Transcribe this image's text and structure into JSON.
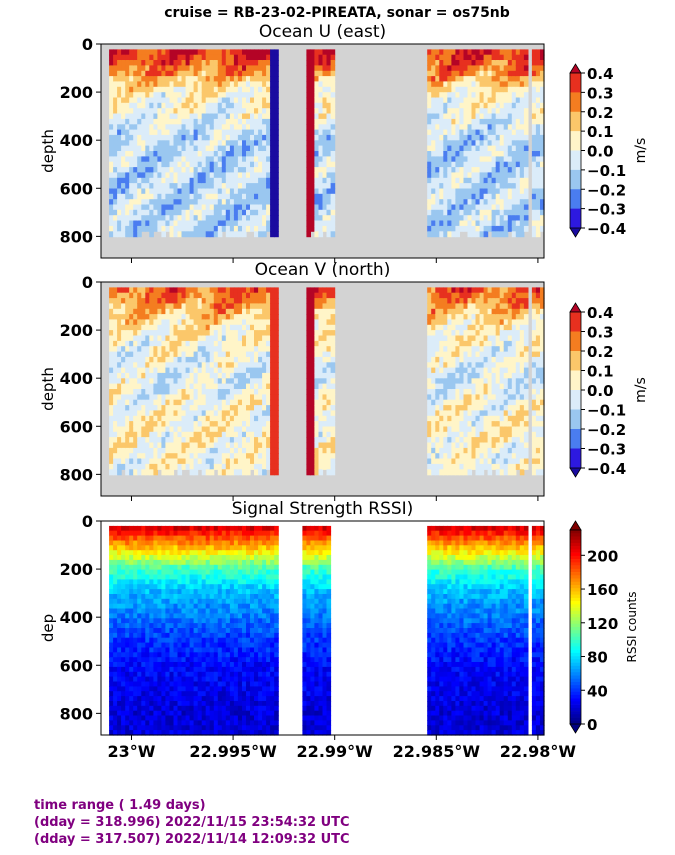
{
  "figure": {
    "suptitle": "cruise = RB-23-02-PIREATA,  sonar = os75nb"
  },
  "footer": {
    "line1": "time range ( 1.49 days)",
    "line2": "(dday = 318.996) 2022/11/15 23:54:32 UTC",
    "line3": "(dday = 317.507) 2022/11/14 12:09:32 UTC"
  },
  "chart_data": [
    {
      "type": "heatmap",
      "title": "Ocean U (east)",
      "ylabel": "depth",
      "ylim": [
        890,
        0
      ],
      "yticks": [
        0,
        200,
        400,
        600,
        800
      ],
      "xticks": [
        "23°W",
        "22.995°W",
        "22.99°W",
        "22.985°W",
        "22.98°W"
      ],
      "xtick_values": [
        -23.0,
        -22.995,
        -22.99,
        -22.985,
        -22.98
      ],
      "xlim": [
        -23.0015,
        -22.9797
      ],
      "colorbar": {
        "label": "m/s",
        "ticks": [
          "0.4",
          "0.3",
          "0.2",
          "0.1",
          "0.0",
          "−0.1",
          "−0.2",
          "−0.3",
          "−0.4"
        ],
        "levels": [
          0.4,
          0.3,
          0.2,
          0.1,
          0.0,
          -0.1,
          -0.2,
          -0.3,
          -0.4
        ],
        "colors": [
          "#b40426",
          "#e7301f",
          "#f47d20",
          "#fbc76a",
          "#fff5c8",
          "#dbecf9",
          "#9ac7f0",
          "#4a7df0",
          "#2d19e0",
          "#1a0ba0"
        ],
        "extend": "both"
      },
      "nodata_color": "#d3d3d3",
      "data_gaps_x": [
        [
          -22.9927,
          -22.9914
        ],
        [
          -22.99,
          -22.9855
        ],
        [
          -22.9805,
          -22.9802
        ]
      ],
      "max_depth_m": 810,
      "profile_summary": [
        {
          "depth": 60,
          "value": 0.35
        },
        {
          "depth": 200,
          "value": 0.05
        },
        {
          "depth": 400,
          "value": -0.1
        },
        {
          "depth": 600,
          "value": -0.1
        },
        {
          "depth": 800,
          "value": -0.1
        }
      ]
    },
    {
      "type": "heatmap",
      "title": "Ocean V (north)",
      "ylabel": "depth",
      "ylim": [
        890,
        0
      ],
      "yticks": [
        0,
        200,
        400,
        600,
        800
      ],
      "xticks": [
        "23°W",
        "22.995°W",
        "22.99°W",
        "22.985°W",
        "22.98°W"
      ],
      "xtick_values": [
        -23.0,
        -22.995,
        -22.99,
        -22.985,
        -22.98
      ],
      "xlim": [
        -23.0015,
        -22.9797
      ],
      "colorbar": {
        "label": "m/s",
        "ticks": [
          "0.4",
          "0.3",
          "0.2",
          "0.1",
          "0.0",
          "−0.1",
          "−0.2",
          "−0.3",
          "−0.4"
        ],
        "levels": [
          0.4,
          0.3,
          0.2,
          0.1,
          0.0,
          -0.1,
          -0.2,
          -0.3,
          -0.4
        ],
        "colors": [
          "#b40426",
          "#e7301f",
          "#f47d20",
          "#fbc76a",
          "#fff5c8",
          "#dbecf9",
          "#9ac7f0",
          "#4a7df0",
          "#2d19e0",
          "#1a0ba0"
        ],
        "extend": "both"
      },
      "nodata_color": "#d3d3d3",
      "data_gaps_x": [
        [
          -22.9927,
          -22.9914
        ],
        [
          -22.99,
          -22.9855
        ],
        [
          -22.9805,
          -22.9802
        ]
      ],
      "max_depth_m": 810,
      "profile_summary": [
        {
          "depth": 30,
          "value": 0.3
        },
        {
          "depth": 200,
          "value": 0.05
        },
        {
          "depth": 400,
          "value": -0.05
        },
        {
          "depth": 600,
          "value": 0.05
        },
        {
          "depth": 800,
          "value": 0.0
        }
      ]
    },
    {
      "type": "heatmap",
      "title": "Signal Strength RSSI)",
      "ylabel": "dep",
      "ylim": [
        890,
        0
      ],
      "yticks": [
        0,
        200,
        400,
        600,
        800
      ],
      "xticks": [
        "23°W",
        "22.995°W",
        "22.99°W",
        "22.985°W",
        "22.98°W"
      ],
      "xtick_values": [
        -23.0,
        -22.995,
        -22.99,
        -22.985,
        -22.98
      ],
      "xlim": [
        -23.0015,
        -22.9797
      ],
      "colorbar": {
        "label": "RSSI counts",
        "ticks": [
          "200",
          "160",
          "120",
          "80",
          "40",
          "0"
        ],
        "vmin": 0,
        "vmax": 230,
        "colormap": "jet"
      },
      "nodata_color": "#ffffff",
      "data_gaps_x": [
        [
          -22.9927,
          -22.9916
        ],
        [
          -22.9902,
          -22.9855
        ],
        [
          -22.9805,
          -22.9802
        ]
      ],
      "max_depth_m": 890,
      "profile_summary": [
        {
          "depth": 20,
          "value": 215
        },
        {
          "depth": 100,
          "value": 165
        },
        {
          "depth": 200,
          "value": 100
        },
        {
          "depth": 300,
          "value": 70
        },
        {
          "depth": 400,
          "value": 55
        },
        {
          "depth": 500,
          "value": 40
        },
        {
          "depth": 600,
          "value": 30
        },
        {
          "depth": 800,
          "value": 20
        }
      ]
    }
  ]
}
